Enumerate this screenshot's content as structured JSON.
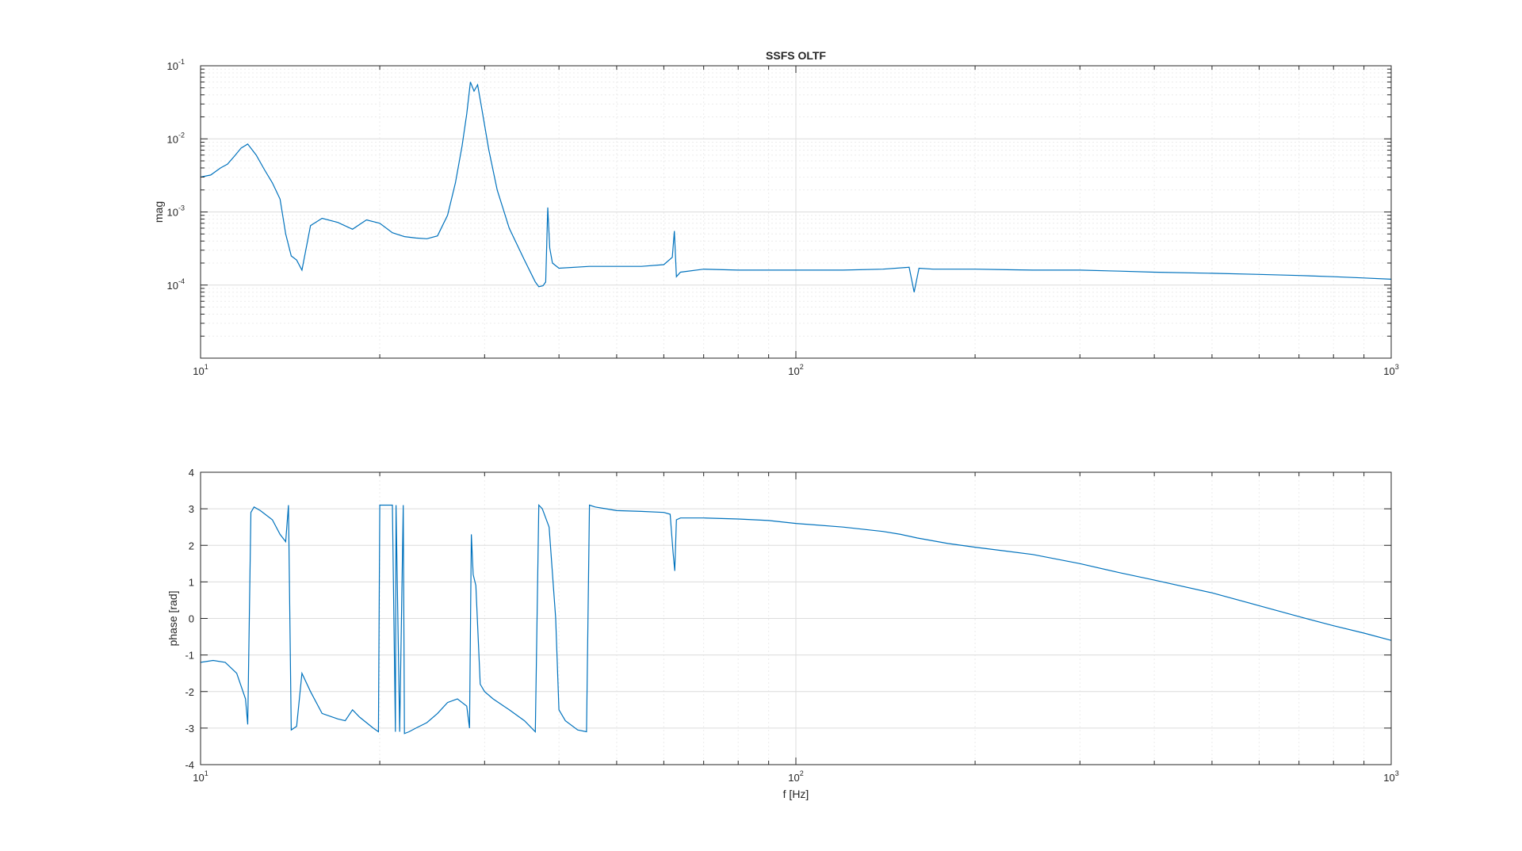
{
  "colors": {
    "series": "#0072BD",
    "axes": "#262626",
    "grid_major": "#dcdcdc",
    "grid_minor": "#ececec"
  },
  "chart_data": [
    {
      "type": "line",
      "title": "SSFS OLTF",
      "xlabel": "",
      "ylabel": "mag",
      "xscale": "log",
      "yscale": "log",
      "xlim": [
        10,
        1000
      ],
      "ylim": [
        1e-05,
        0.1
      ],
      "grid": "on (major + minor)",
      "x_ticks": [
        {
          "value": 10,
          "base": "10",
          "exp": "1"
        },
        {
          "value": 100,
          "base": "10",
          "exp": "2"
        },
        {
          "value": 1000,
          "base": "10",
          "exp": "3"
        }
      ],
      "y_ticks": [
        {
          "value": 0.1,
          "base": "10",
          "exp": "-1"
        },
        {
          "value": 0.01,
          "base": "10",
          "exp": "-2"
        },
        {
          "value": 0.001,
          "base": "10",
          "exp": "-3"
        },
        {
          "value": 0.0001,
          "base": "10",
          "exp": "-4"
        }
      ],
      "series": [
        {
          "x": [
            10,
            10.4,
            10.8,
            11.1,
            11.4,
            11.7,
            12.0,
            12.4,
            12.8,
            13.2,
            13.6,
            13.9,
            14.2,
            14.5,
            14.8,
            15.3,
            16.0,
            17.0,
            18.0,
            19.0,
            20.0,
            21.0,
            22.0,
            23.0,
            24.0,
            25.0,
            26.0,
            26.8,
            27.5,
            28.0,
            28.4,
            28.8,
            29.2,
            29.7,
            30.5,
            31.5,
            33.0,
            35.0,
            36.5,
            37.0,
            37.6,
            38.0,
            38.3,
            38.6,
            39.0,
            40.0,
            45.0,
            50.0,
            55.0,
            60.0,
            62.0,
            62.5,
            63.0,
            64.0,
            70.0,
            80.0,
            90.0,
            100.0,
            120.0,
            140.0,
            155.0,
            158.0,
            161.0,
            170.0,
            200.0,
            250.0,
            300.0,
            350.0,
            400.0,
            500.0,
            600.0,
            700.0,
            800.0,
            900.0,
            1000.0
          ],
          "y": [
            0.003,
            0.0032,
            0.004,
            0.0045,
            0.0058,
            0.0075,
            0.0085,
            0.006,
            0.0038,
            0.0025,
            0.0015,
            0.0005,
            0.00025,
            0.00022,
            0.00016,
            0.00065,
            0.00082,
            0.00072,
            0.00058,
            0.00078,
            0.0007,
            0.00052,
            0.00046,
            0.00044,
            0.00043,
            0.00047,
            0.0009,
            0.0025,
            0.008,
            0.022,
            0.06,
            0.045,
            0.055,
            0.025,
            0.007,
            0.002,
            0.0006,
            0.00022,
            0.00011,
            9.5e-05,
            9.8e-05,
            0.00011,
            0.00115,
            0.00032,
            0.0002,
            0.00017,
            0.00018,
            0.00018,
            0.00018,
            0.00019,
            0.00024,
            0.00055,
            0.00013,
            0.00015,
            0.000165,
            0.00016,
            0.00016,
            0.00016,
            0.00016,
            0.000165,
            0.000175,
            8e-05,
            0.00017,
            0.000165,
            0.000165,
            0.00016,
            0.00016,
            0.000155,
            0.00015,
            0.000145,
            0.00014,
            0.000135,
            0.00013,
            0.000125,
            0.00012
          ]
        }
      ]
    },
    {
      "type": "line",
      "title": "",
      "xlabel": "f [Hz]",
      "ylabel": "phase [rad]",
      "xscale": "log",
      "yscale": "linear",
      "xlim": [
        10,
        1000
      ],
      "ylim": [
        -4,
        4
      ],
      "grid": "on (major + minor x)",
      "x_ticks": [
        {
          "value": 10,
          "base": "10",
          "exp": "1"
        },
        {
          "value": 100,
          "base": "10",
          "exp": "2"
        },
        {
          "value": 1000,
          "base": "10",
          "exp": "3"
        }
      ],
      "y_ticks": [
        {
          "value": 4,
          "label": "4"
        },
        {
          "value": 3,
          "label": "3"
        },
        {
          "value": 2,
          "label": "2"
        },
        {
          "value": 1,
          "label": "1"
        },
        {
          "value": 0,
          "label": "0"
        },
        {
          "value": -1,
          "label": "-1"
        },
        {
          "value": -2,
          "label": "-2"
        },
        {
          "value": -3,
          "label": "-3"
        },
        {
          "value": -4,
          "label": "-4"
        }
      ],
      "series": [
        {
          "x": [
            10,
            10.5,
            11.0,
            11.5,
            11.9,
            12.0,
            12.15,
            12.3,
            12.6,
            13.2,
            13.6,
            13.9,
            14.05,
            14.2,
            14.5,
            14.8,
            15.3,
            16.0,
            17.0,
            17.5,
            18.0,
            18.5,
            19.5,
            19.9,
            20.0,
            20.3,
            21.0,
            21.25,
            21.3,
            21.6,
            21.9,
            22.0,
            22.4,
            23.0,
            24.0,
            25.0,
            26.0,
            27.0,
            28.0,
            28.3,
            28.5,
            28.7,
            29.0,
            29.5,
            30.0,
            31.0,
            33.0,
            35.0,
            36.5,
            37.0,
            37.5,
            38.5,
            39.5,
            40.0,
            41.0,
            43.0,
            44.5,
            45.0,
            46.0,
            48.0,
            50.0,
            55.0,
            60.0,
            61.5,
            62.2,
            62.6,
            63.0,
            64.0,
            70.0,
            80.0,
            90.0,
            100.0,
            120.0,
            140.0,
            150.0,
            160.0,
            180.0,
            200.0,
            250.0,
            300.0,
            350.0,
            400.0,
            500.0,
            600.0,
            700.0,
            800.0,
            900.0,
            1000.0
          ],
          "y": [
            -1.2,
            -1.15,
            -1.2,
            -1.5,
            -2.2,
            -2.9,
            2.9,
            3.05,
            2.95,
            2.7,
            2.3,
            2.1,
            3.1,
            -3.05,
            -2.95,
            -1.5,
            -2.0,
            -2.6,
            -2.75,
            -2.8,
            -2.5,
            -2.7,
            -3.0,
            -3.1,
            3.1,
            3.1,
            3.1,
            -3.1,
            3.1,
            -3.1,
            3.1,
            -3.15,
            -3.1,
            -3.0,
            -2.85,
            -2.6,
            -2.3,
            -2.2,
            -2.4,
            -3.0,
            2.3,
            1.2,
            0.9,
            -1.8,
            -2.0,
            -2.2,
            -2.5,
            -2.8,
            -3.1,
            3.1,
            3.0,
            2.5,
            0.0,
            -2.5,
            -2.8,
            -3.05,
            -3.1,
            3.1,
            3.05,
            3.0,
            2.95,
            2.93,
            2.9,
            2.85,
            1.8,
            1.3,
            2.7,
            2.75,
            2.75,
            2.72,
            2.68,
            2.6,
            2.5,
            2.38,
            2.3,
            2.2,
            2.05,
            1.95,
            1.75,
            1.5,
            1.25,
            1.05,
            0.7,
            0.35,
            0.05,
            -0.2,
            -0.4,
            -0.6
          ]
        }
      ]
    }
  ]
}
